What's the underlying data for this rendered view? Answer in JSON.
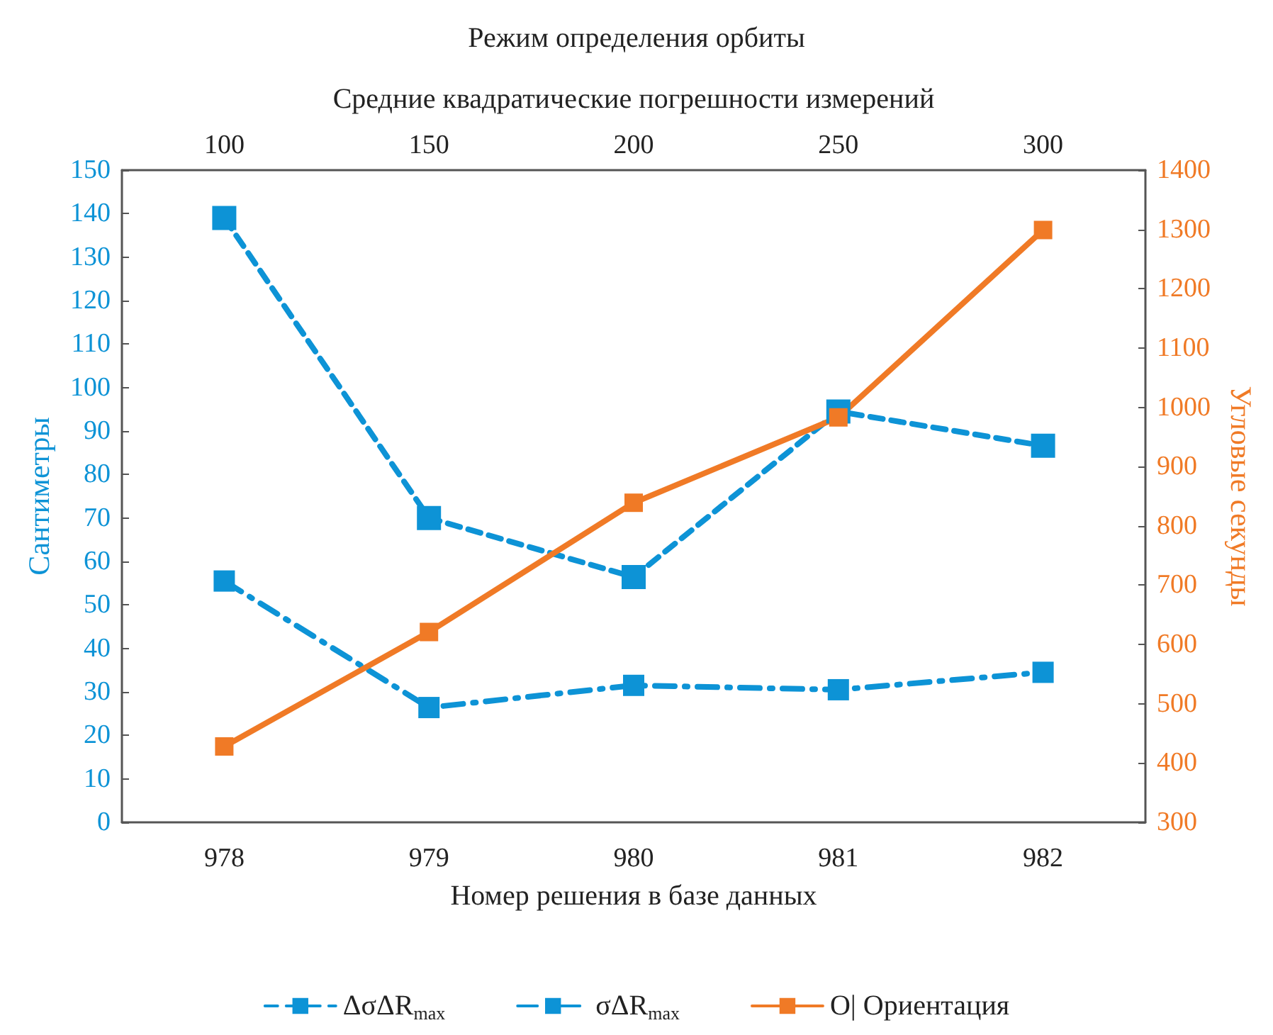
{
  "chart_data": {
    "type": "line",
    "title": "Режим определения орбиты",
    "x2label": "Средние квадратические погрешности измерений",
    "xlabel": "Номер решения в базе данных",
    "ylabel": "Сантиметры",
    "y2label": "Угловые секунды",
    "categories": [
      "978",
      "979",
      "980",
      "981",
      "982"
    ],
    "x2lim": [
      75,
      325
    ],
    "x2ticks": [
      100,
      150,
      200,
      250,
      300
    ],
    "ylim": [
      0,
      150
    ],
    "yticks": [
      0,
      10,
      20,
      30,
      40,
      50,
      60,
      70,
      80,
      90,
      100,
      110,
      120,
      130,
      140,
      150
    ],
    "y2lim": [
      300,
      1400
    ],
    "y2ticks": [
      300,
      400,
      500,
      600,
      700,
      800,
      900,
      1000,
      1100,
      1200,
      1300,
      1400
    ],
    "series": [
      {
        "name": "ΔσΔR$_{max}$",
        "color": "#0d93d6",
        "line_style": "dashed",
        "values": [
          139,
          70,
          56.4,
          94.5,
          86.6
        ]
      },
      {
        "name": "σΔR$_{max}$",
        "color": "#0d93d6",
        "line_style": "dashdot",
        "values": [
          55.5,
          26.4,
          31.5,
          30.5,
          34.5
        ]
      },
      {
        "name": "O| Ориентация",
        "color": "#f07a26",
        "line_style": "solid",
        "axis": "y2",
        "values": [
          428,
          621,
          839,
          983,
          1299
        ]
      }
    ],
    "marker": "square",
    "grid": false,
    "legend": "bottom"
  }
}
